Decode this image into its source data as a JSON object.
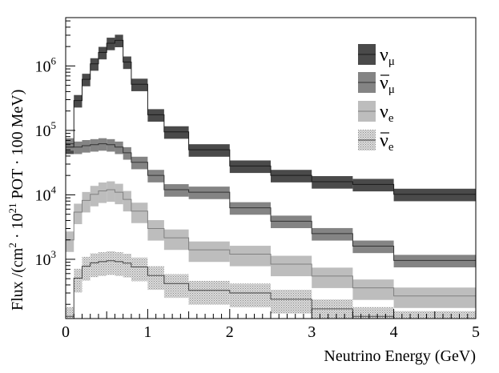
{
  "chart_data": {
    "type": "step",
    "xlabel": "Neutrino Energy (GeV)",
    "ylabel_parts": [
      "Flux /(cm",
      "2",
      " · 10",
      "21",
      " POT · 100 MeV)"
    ],
    "xlim": [
      0,
      5
    ],
    "ylim_log10": [
      2.08,
      6.75
    ],
    "yscale": "log",
    "x_ticks": [
      "0",
      "1",
      "2",
      "3",
      "4",
      "5"
    ],
    "y_ticks": [
      {
        "base": "10",
        "exp": "3",
        "exponent": 3
      },
      {
        "base": "10",
        "exp": "4",
        "exponent": 4
      },
      {
        "base": "10",
        "exp": "5",
        "exponent": 5
      },
      {
        "base": "10",
        "exp": "6",
        "exponent": 6
      }
    ],
    "bin_edges": [
      0,
      0.1,
      0.2,
      0.3,
      0.4,
      0.5,
      0.6,
      0.7,
      0.8,
      1.0,
      1.2,
      1.5,
      2.0,
      2.5,
      3.0,
      3.5,
      4.0,
      5.0
    ],
    "series": [
      {
        "name": "nu_mu",
        "symbol": "ν",
        "sub": "μ",
        "bar": false,
        "color": "#4a4a4a",
        "line_color": "#1a1a1a",
        "pattern": false,
        "values": [
          55000,
          290000,
          620000,
          1080000,
          1620000,
          2250000,
          2500000,
          1150000,
          520000,
          175000,
          95000,
          50000,
          28000,
          20000,
          16000,
          14500,
          10200
        ],
        "err_frac": 0.22
      },
      {
        "name": "nu_mu_bar",
        "symbol": "ν",
        "sub": "μ",
        "bar": true,
        "color": "#848484",
        "line_color": "#333333",
        "pattern": false,
        "values": [
          62000,
          55000,
          58000,
          60000,
          62000,
          60000,
          55000,
          45000,
          32000,
          20000,
          12000,
          11000,
          6300,
          3900,
          2500,
          1600,
          960
        ],
        "err_frac": 0.22
      },
      {
        "name": "nu_e",
        "symbol": "ν",
        "sub": "e",
        "bar": false,
        "color": "#bdbdbd",
        "line_color": "#808080",
        "pattern": false,
        "values": [
          2000,
          5400,
          8200,
          10200,
          11500,
          12000,
          11000,
          8500,
          5600,
          3000,
          2150,
          1400,
          1200,
          840,
          550,
          360,
          270
        ],
        "err_frac": 0.35
      },
      {
        "name": "nu_e_bar",
        "symbol": "ν",
        "sub": "e",
        "bar": true,
        "color": "#c8c8c8",
        "line_color": "#404040",
        "pattern": true,
        "values": [
          130,
          510,
          780,
          880,
          920,
          950,
          920,
          870,
          760,
          560,
          420,
          330,
          300,
          240,
          170,
          130,
          112
        ],
        "err_frac": 0.4
      }
    ]
  }
}
